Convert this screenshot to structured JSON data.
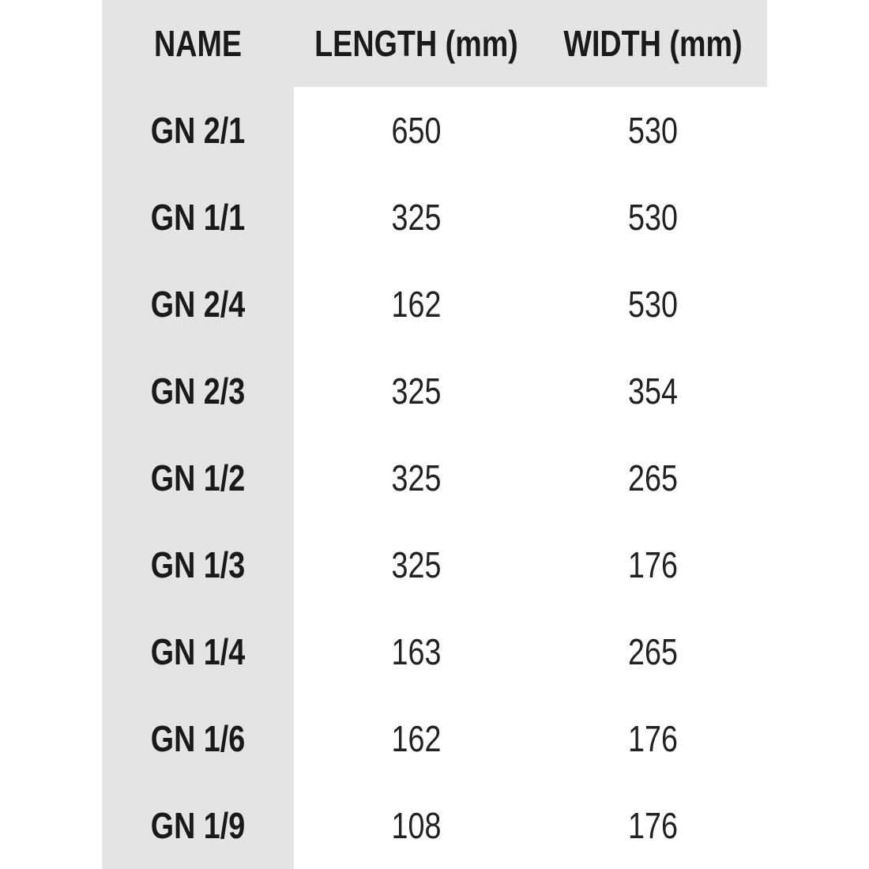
{
  "table": {
    "headers": [
      "NAME",
      "LENGTH (mm)",
      "WIDTH (mm)"
    ],
    "rows": [
      [
        "GN 2/1",
        "650",
        "530"
      ],
      [
        "GN 1/1",
        "325",
        "530"
      ],
      [
        "GN 2/4",
        "162",
        "530"
      ],
      [
        "GN 2/3",
        "325",
        "354"
      ],
      [
        "GN 1/2",
        "325",
        "265"
      ],
      [
        "GN 1/3",
        "325",
        "176"
      ],
      [
        "GN 1/4",
        "163",
        "265"
      ],
      [
        "GN 1/6",
        "162",
        "176"
      ],
      [
        "GN 1/9",
        "108",
        "176"
      ]
    ]
  },
  "colors": {
    "header_background": "#e5e4e4",
    "text": "#1a1a1a"
  }
}
